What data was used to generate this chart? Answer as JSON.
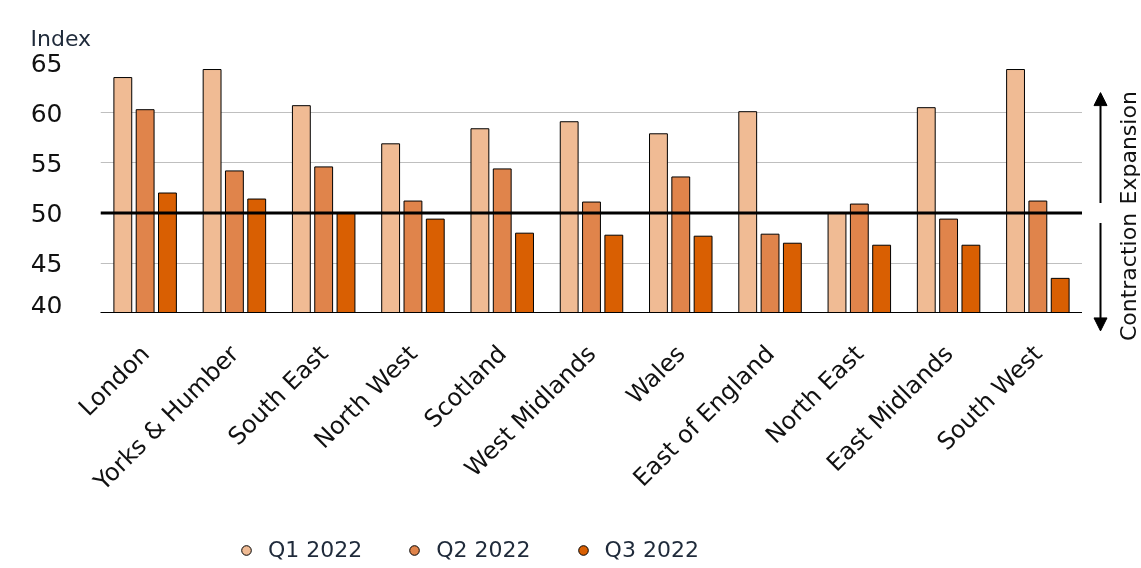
{
  "chart_data": {
    "type": "bar",
    "ylabel": "Index",
    "categories": [
      "London",
      "Yorks & Humber",
      "South East",
      "North West",
      "Scotland",
      "West Midlands",
      "Wales",
      "East of England",
      "North East",
      "East Midlands",
      "South West"
    ],
    "series": [
      {
        "name": "Q1 2022",
        "color": "#f0bb94",
        "values": [
          63.5,
          64.3,
          60.7,
          56.9,
          58.4,
          59.1,
          57.9,
          60.1,
          50.0,
          60.5,
          64.3
        ]
      },
      {
        "name": "Q2 2022",
        "color": "#e0844b",
        "values": [
          60.3,
          54.2,
          54.6,
          51.2,
          54.4,
          51.1,
          53.6,
          47.9,
          50.9,
          49.4,
          51.2
        ]
      },
      {
        "name": "Q3 2022",
        "color": "#d95f02",
        "values": [
          52.0,
          51.4,
          50.0,
          49.4,
          48.0,
          47.8,
          47.7,
          47.0,
          46.8,
          46.8,
          43.5
        ]
      }
    ],
    "ylim": [
      40,
      65
    ],
    "yticks": [
      40,
      45,
      50,
      55,
      60,
      65
    ],
    "grid": "y",
    "legend": "bottom",
    "ref_lines": [
      {
        "axis": "y",
        "value": 50,
        "color": "#000000"
      }
    ],
    "annotations": [
      "Expansion",
      "Contraction"
    ]
  }
}
